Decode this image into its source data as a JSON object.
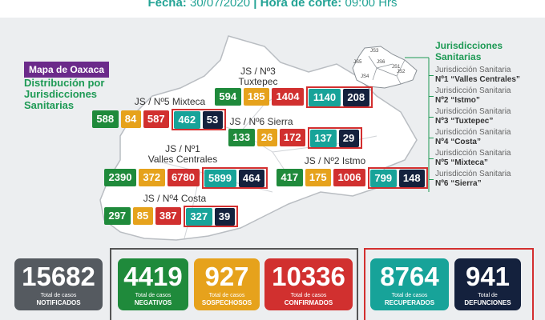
{
  "header": {
    "date_label": "Fecha:",
    "date": "30/07/2020",
    "separator": "|",
    "time_label": "Hora de corte:",
    "time": "09:00 Hrs"
  },
  "map": {
    "tag": "Mapa de Oaxaca",
    "subtitle": "Distribución por Jurisdicciones Sanitarias"
  },
  "regions": [
    {
      "label": [
        "JS / Nº3",
        "Tuxtepec"
      ],
      "values": [
        "594",
        "185",
        "1404",
        "1140",
        "208"
      ]
    },
    {
      "label": [
        "JS / Nº5 Mixteca"
      ],
      "values": [
        "588",
        "84",
        "587",
        "462",
        "53"
      ]
    },
    {
      "label": [
        "JS / Nº6 Sierra"
      ],
      "values": [
        "133",
        "26",
        "172",
        "137",
        "29"
      ]
    },
    {
      "label": [
        "JS / Nº1",
        "Valles Centrales"
      ],
      "values": [
        "2390",
        "372",
        "6780",
        "5899",
        "464"
      ]
    },
    {
      "label": [
        "JS / Nº2 Istmo"
      ],
      "values": [
        "417",
        "175",
        "1006",
        "799",
        "148"
      ]
    },
    {
      "label": [
        "JS / Nº4 Costa"
      ],
      "values": [
        "297",
        "85",
        "387",
        "327",
        "39"
      ]
    }
  ],
  "mini_map": {
    "labels": [
      "JS1",
      "JS2",
      "JS3",
      "JS4",
      "JS5",
      "JS6"
    ]
  },
  "legend": {
    "title": "Jurisdicciones Sanitarias",
    "items": [
      {
        "line1": "Jurisdicción Sanitaria",
        "line2": "Nº1 “Valles Centrales”"
      },
      {
        "line1": "Jurisdicción Sanitaria",
        "line2": "Nº2 “Istmo”"
      },
      {
        "line1": "Jurisdicción Sanitaria",
        "line2": "Nº3 “Tuxtepec”"
      },
      {
        "line1": "Jurisdicción Sanitaria",
        "line2": "Nº4 “Costa”"
      },
      {
        "line1": "Jurisdicción Sanitaria",
        "line2": "Nº5 “Mixteca”"
      },
      {
        "line1": "Jurisdicción Sanitaria",
        "line2": "Nº6 “Sierra”"
      }
    ]
  },
  "totals": [
    {
      "value": "15682",
      "caption": "Total de casos",
      "kind": "NOTIFICADOS"
    },
    {
      "value": "4419",
      "caption": "Total de casos",
      "kind": "NEGATIVOS"
    },
    {
      "value": "927",
      "caption": "Total de casos",
      "kind": "SOSPECHOSOS"
    },
    {
      "value": "10336",
      "caption": "Total de casos",
      "kind": "CONFIRMADOS"
    },
    {
      "value": "8764",
      "caption": "Total de casos",
      "kind": "RECUPERADOS"
    },
    {
      "value": "941",
      "caption": "Total de",
      "kind": "DEFUNCIONES"
    }
  ]
}
